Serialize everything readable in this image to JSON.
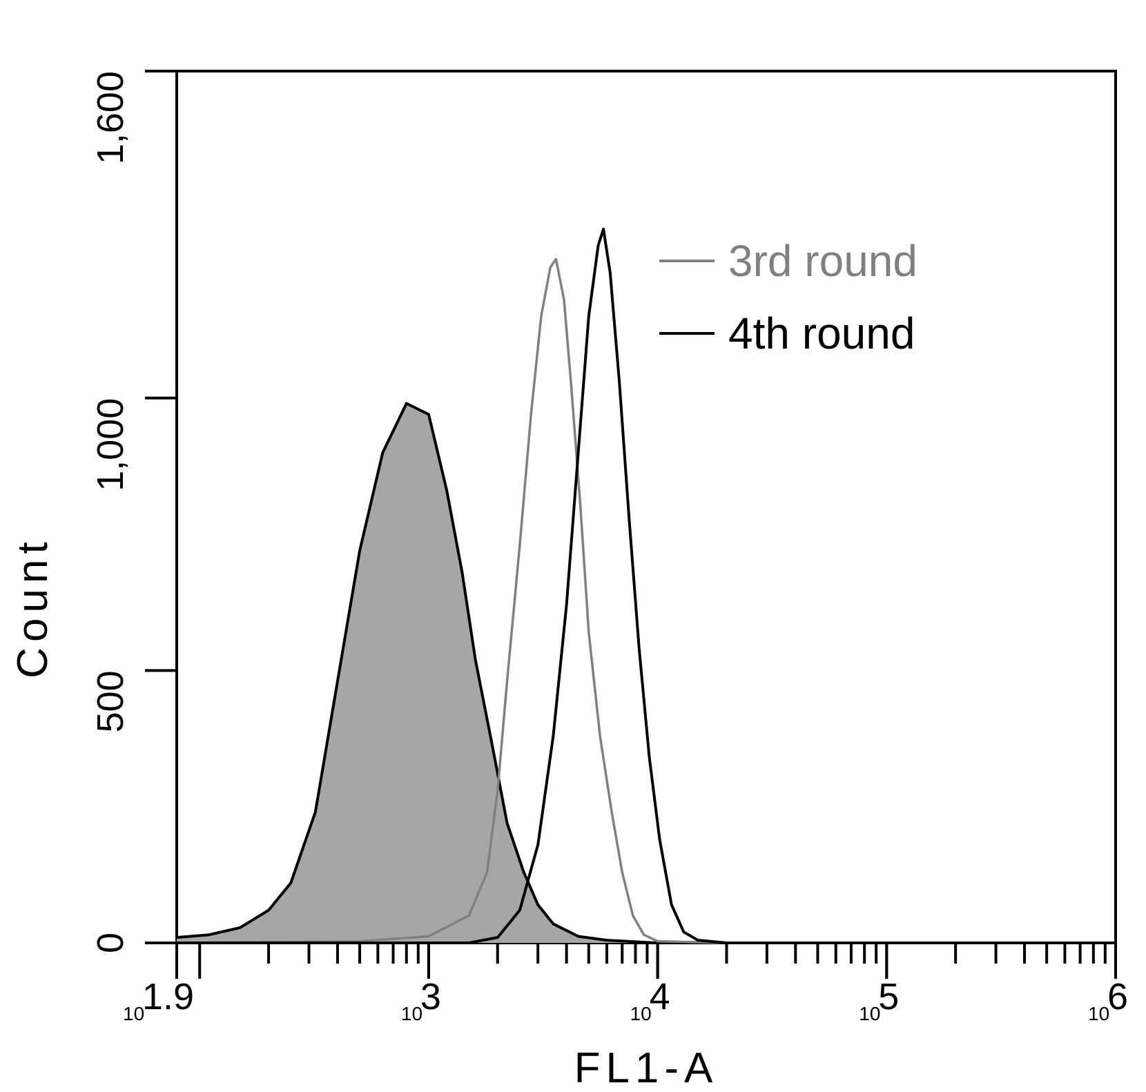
{
  "chart_data": {
    "type": "area",
    "title": "",
    "xlabel": "FL1-A",
    "ylabel": "Count",
    "x_scale": "log10",
    "xlim": [
      79.4,
      1000000
    ],
    "ylim": [
      0,
      1600
    ],
    "y_ticks": [
      {
        "value": 0,
        "label": "0"
      },
      {
        "value": 500,
        "label": "500"
      },
      {
        "value": 1000,
        "label": "1,000"
      },
      {
        "value": 1600,
        "label": "1,600"
      }
    ],
    "x_ticks": [
      {
        "value": 79.4,
        "base": "10",
        "exp": "1.9"
      },
      {
        "value": 1000,
        "base": "10",
        "exp": "3"
      },
      {
        "value": 10000,
        "base": "10",
        "exp": "4"
      },
      {
        "value": 100000,
        "base": "10",
        "exp": "5"
      },
      {
        "value": 1000000,
        "base": "10",
        "exp": "6"
      }
    ],
    "grid": false,
    "legend_position": "top-right",
    "series": [
      {
        "style": "filled",
        "color": "#000000",
        "fill": "#a6a6a6",
        "points": [
          [
            79.4,
            10
          ],
          [
            110,
            15
          ],
          [
            150,
            28
          ],
          [
            200,
            60
          ],
          [
            250,
            110
          ],
          [
            320,
            240
          ],
          [
            400,
            480
          ],
          [
            500,
            720
          ],
          [
            630,
            900
          ],
          [
            800,
            990
          ],
          [
            1000,
            970
          ],
          [
            1200,
            830
          ],
          [
            1400,
            680
          ],
          [
            1600,
            520
          ],
          [
            1900,
            360
          ],
          [
            2200,
            220
          ],
          [
            2600,
            130
          ],
          [
            3000,
            70
          ],
          [
            3500,
            35
          ],
          [
            4500,
            12
          ],
          [
            6000,
            5
          ],
          [
            8000,
            2
          ],
          [
            10000,
            0
          ]
        ]
      },
      {
        "name": "3rd round",
        "color": "#808080",
        "points": [
          [
            79.4,
            0
          ],
          [
            500,
            3
          ],
          [
            1000,
            12
          ],
          [
            1500,
            50
          ],
          [
            1800,
            130
          ],
          [
            2000,
            280
          ],
          [
            2200,
            480
          ],
          [
            2500,
            730
          ],
          [
            2800,
            970
          ],
          [
            3100,
            1150
          ],
          [
            3400,
            1240
          ],
          [
            3600,
            1255
          ],
          [
            3900,
            1180
          ],
          [
            4200,
            1020
          ],
          [
            4600,
            800
          ],
          [
            5000,
            570
          ],
          [
            5600,
            380
          ],
          [
            6300,
            240
          ],
          [
            7000,
            130
          ],
          [
            7800,
            50
          ],
          [
            8700,
            15
          ],
          [
            10000,
            3
          ],
          [
            20000,
            0
          ]
        ]
      },
      {
        "name": "4th round",
        "color": "#000000",
        "points": [
          [
            79.4,
            0
          ],
          [
            1500,
            0
          ],
          [
            2000,
            10
          ],
          [
            2500,
            60
          ],
          [
            3000,
            180
          ],
          [
            3500,
            380
          ],
          [
            4000,
            620
          ],
          [
            4500,
            900
          ],
          [
            5000,
            1150
          ],
          [
            5500,
            1280
          ],
          [
            5800,
            1310
          ],
          [
            6200,
            1230
          ],
          [
            6800,
            1030
          ],
          [
            7500,
            780
          ],
          [
            8300,
            540
          ],
          [
            9200,
            340
          ],
          [
            10200,
            190
          ],
          [
            11500,
            70
          ],
          [
            13000,
            20
          ],
          [
            15000,
            5
          ],
          [
            20000,
            0
          ],
          [
            1000000,
            0
          ]
        ]
      }
    ]
  }
}
